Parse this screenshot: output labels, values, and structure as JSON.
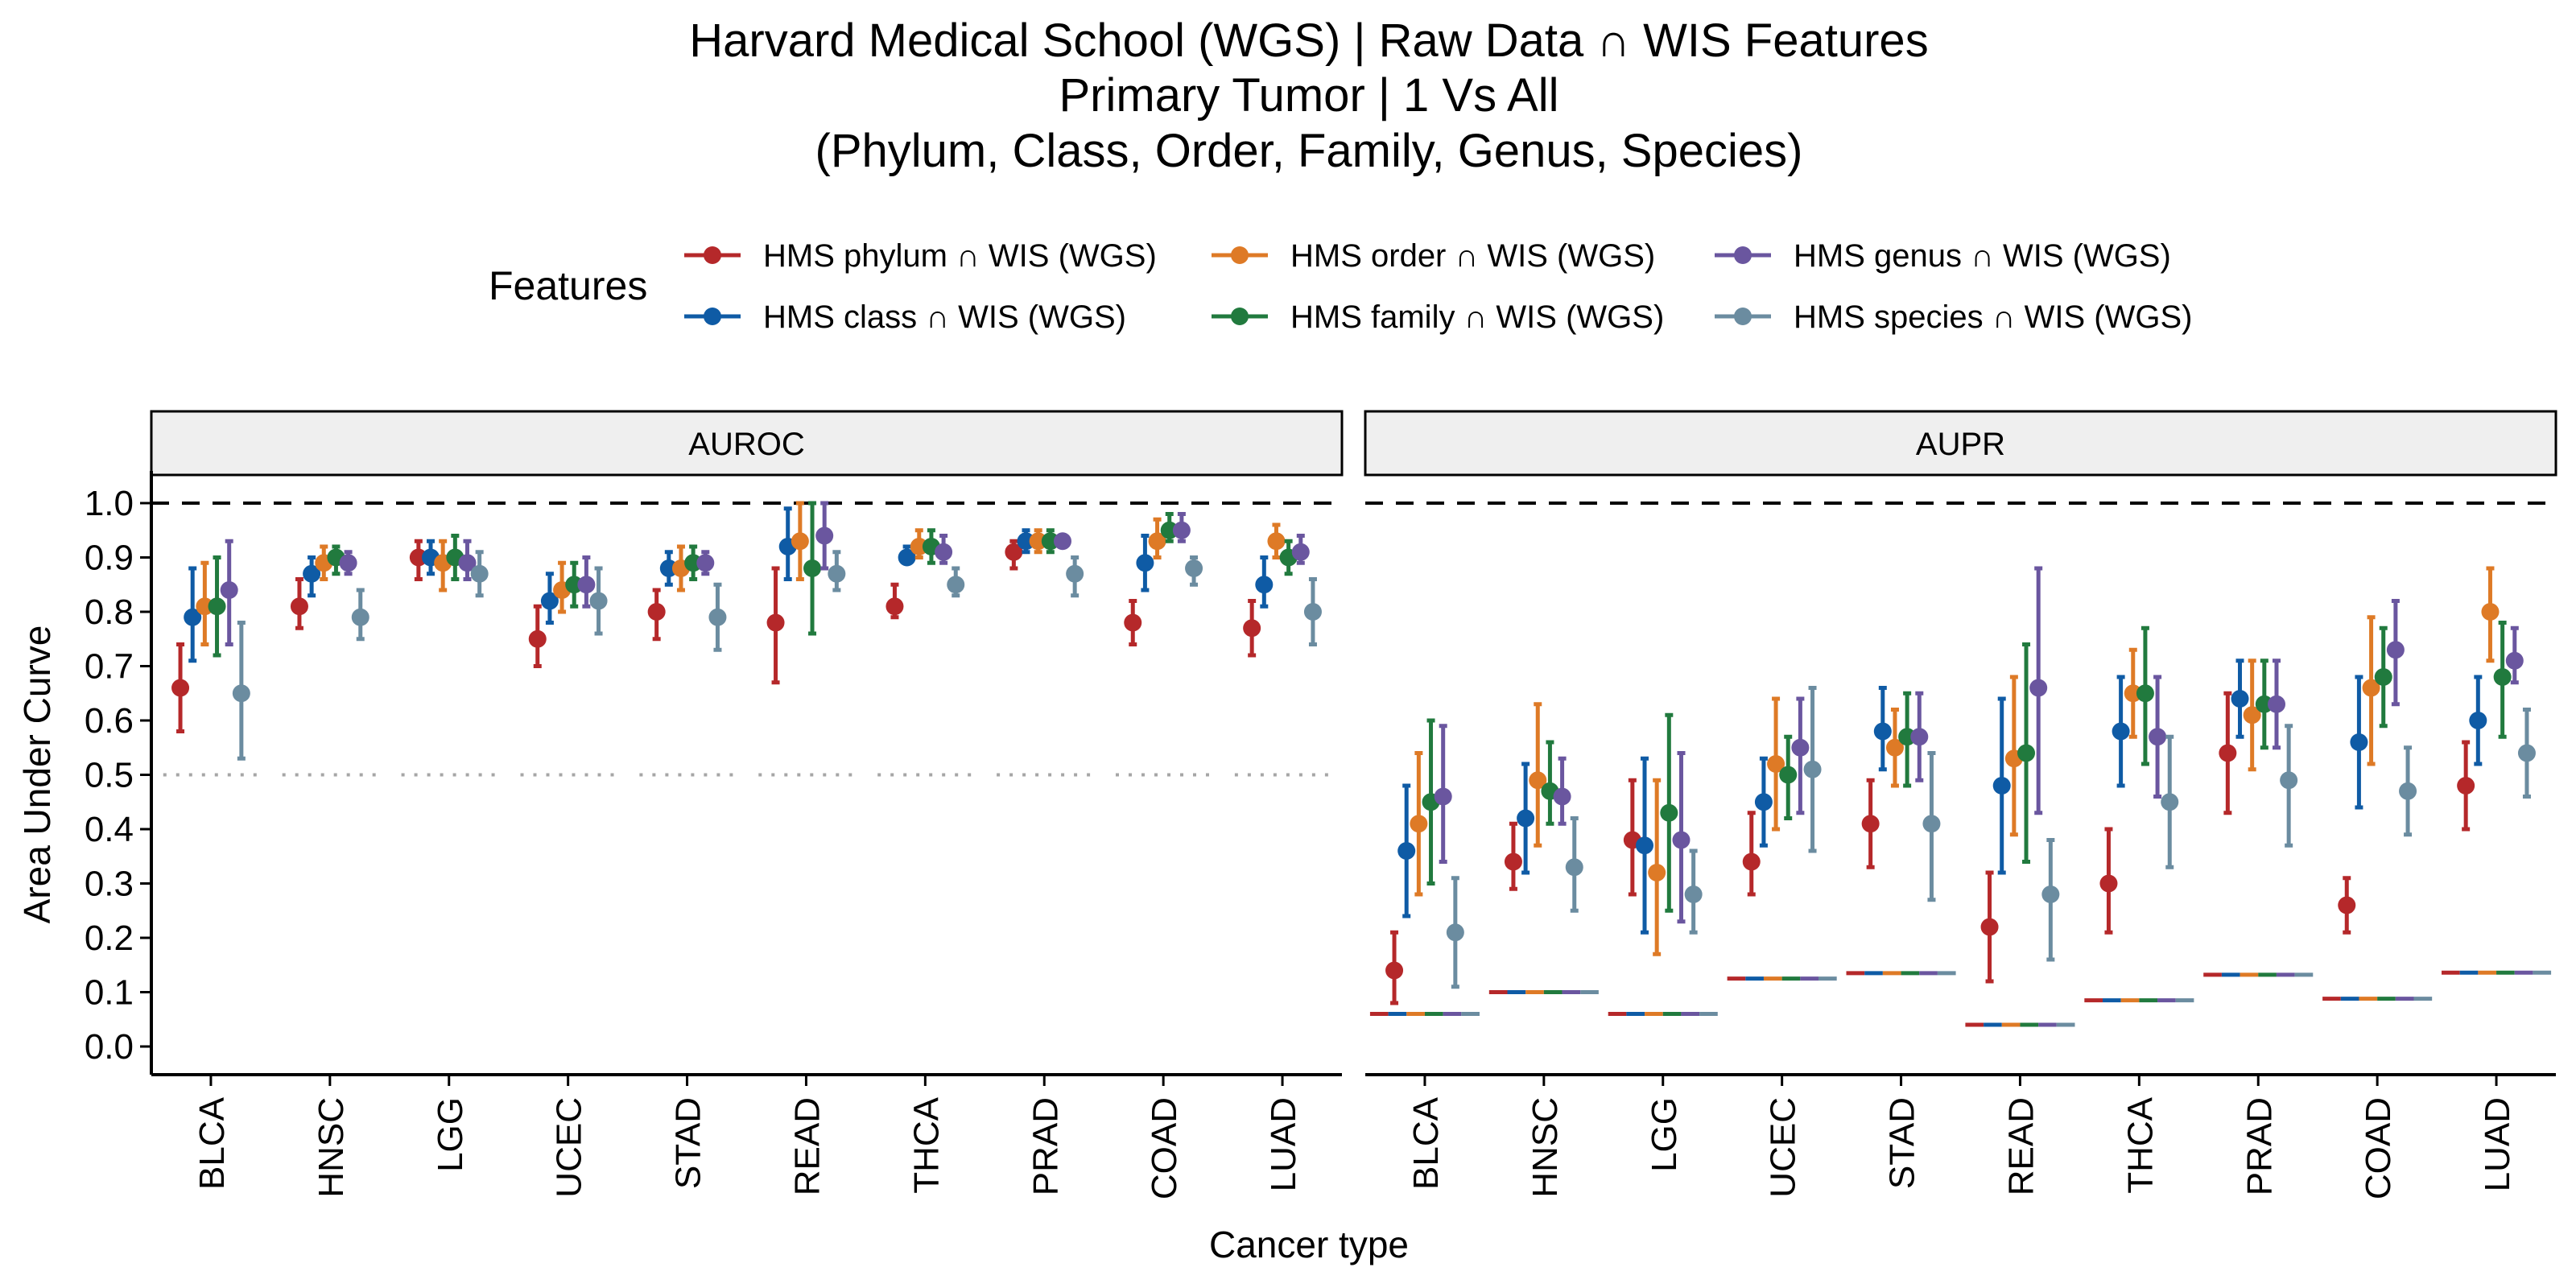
{
  "chart_data": {
    "type": "scatter",
    "title": [
      "Harvard Medical School (WGS) | Raw Data ∩ WIS Features",
      "Primary Tumor | 1 Vs All",
      "(Phylum, Class, Order, Family, Genus, Species)"
    ],
    "xlabel": "Cancer type",
    "ylabel": "Area Under Curve",
    "ylim": [
      0,
      1
    ],
    "yticks": [
      "0.0",
      "0.1",
      "0.2",
      "0.3",
      "0.4",
      "0.5",
      "0.6",
      "0.7",
      "0.8",
      "0.9",
      "1.0"
    ],
    "categories": [
      "BLCA",
      "HNSC",
      "LGG",
      "UCEC",
      "STAD",
      "READ",
      "THCA",
      "PRAD",
      "COAD",
      "LUAD"
    ],
    "legend_title": "Features",
    "legend_position": "top",
    "series": [
      {
        "name": "HMS phylum ∩ WIS (WGS)",
        "color": "#B5282A"
      },
      {
        "name": "HMS class ∩ WIS (WGS)",
        "color": "#0F5BA5"
      },
      {
        "name": "HMS order ∩ WIS (WGS)",
        "color": "#DE7A26"
      },
      {
        "name": "HMS family ∩ WIS (WGS)",
        "color": "#217A3E"
      },
      {
        "name": "HMS genus ∩ WIS (WGS)",
        "color": "#6A569F"
      },
      {
        "name": "HMS species ∩ WIS (WGS)",
        "color": "#6B8CA0"
      }
    ],
    "panels": [
      {
        "label": "AUROC",
        "reference_lines": [
          {
            "y": 1.0,
            "style": "dashed"
          },
          {
            "y": 0.5,
            "style": "dotted"
          }
        ],
        "values": [
          [
            [
              0.66,
              0.58,
              0.74
            ],
            [
              0.79,
              0.71,
              0.88
            ],
            [
              0.81,
              0.74,
              0.89
            ],
            [
              0.81,
              0.72,
              0.9
            ],
            [
              0.84,
              0.74,
              0.93
            ],
            [
              0.65,
              0.53,
              0.78
            ]
          ],
          [
            [
              0.81,
              0.77,
              0.86
            ],
            [
              0.87,
              0.83,
              0.9
            ],
            [
              0.89,
              0.86,
              0.92
            ],
            [
              0.9,
              0.87,
              0.92
            ],
            [
              0.89,
              0.87,
              0.91
            ],
            [
              0.79,
              0.75,
              0.84
            ]
          ],
          [
            [
              0.9,
              0.86,
              0.93
            ],
            [
              0.9,
              0.87,
              0.93
            ],
            [
              0.89,
              0.84,
              0.93
            ],
            [
              0.9,
              0.86,
              0.94
            ],
            [
              0.89,
              0.86,
              0.93
            ],
            [
              0.87,
              0.83,
              0.91
            ]
          ],
          [
            [
              0.75,
              0.7,
              0.81
            ],
            [
              0.82,
              0.78,
              0.87
            ],
            [
              0.84,
              0.8,
              0.89
            ],
            [
              0.85,
              0.81,
              0.89
            ],
            [
              0.85,
              0.81,
              0.9
            ],
            [
              0.82,
              0.76,
              0.88
            ]
          ],
          [
            [
              0.8,
              0.75,
              0.84
            ],
            [
              0.88,
              0.85,
              0.91
            ],
            [
              0.88,
              0.84,
              0.92
            ],
            [
              0.89,
              0.86,
              0.92
            ],
            [
              0.89,
              0.87,
              0.91
            ],
            [
              0.79,
              0.73,
              0.85
            ]
          ],
          [
            [
              0.78,
              0.67,
              0.88
            ],
            [
              0.92,
              0.86,
              0.99
            ],
            [
              0.93,
              0.86,
              1.0
            ],
            [
              0.88,
              0.76,
              1.0
            ],
            [
              0.94,
              0.88,
              1.0
            ],
            [
              0.87,
              0.84,
              0.91
            ]
          ],
          [
            [
              0.81,
              0.79,
              0.85
            ],
            [
              0.9,
              0.89,
              0.92
            ],
            [
              0.92,
              0.9,
              0.95
            ],
            [
              0.92,
              0.89,
              0.95
            ],
            [
              0.91,
              0.89,
              0.94
            ],
            [
              0.85,
              0.83,
              0.88
            ]
          ],
          [
            [
              0.91,
              0.88,
              0.93
            ],
            [
              0.93,
              0.91,
              0.95
            ],
            [
              0.93,
              0.91,
              0.95
            ],
            [
              0.93,
              0.91,
              0.95
            ],
            [
              0.93,
              0.92,
              0.94
            ],
            [
              0.87,
              0.83,
              0.9
            ]
          ],
          [
            [
              0.78,
              0.74,
              0.82
            ],
            [
              0.89,
              0.84,
              0.94
            ],
            [
              0.93,
              0.9,
              0.97
            ],
            [
              0.95,
              0.93,
              0.98
            ],
            [
              0.95,
              0.93,
              0.98
            ],
            [
              0.88,
              0.85,
              0.9
            ]
          ],
          [
            [
              0.77,
              0.72,
              0.82
            ],
            [
              0.85,
              0.81,
              0.9
            ],
            [
              0.93,
              0.9,
              0.96
            ],
            [
              0.9,
              0.87,
              0.93
            ],
            [
              0.91,
              0.89,
              0.94
            ],
            [
              0.8,
              0.74,
              0.86
            ]
          ]
        ]
      },
      {
        "label": "AUPR",
        "reference_lines": [
          {
            "y": 1.0,
            "style": "dashed"
          }
        ],
        "baselines": [
          0.06,
          0.1,
          0.06,
          0.125,
          0.135,
          0.04,
          0.085,
          0.132,
          0.088,
          0.136
        ],
        "values": [
          [
            [
              0.14,
              0.08,
              0.21
            ],
            [
              0.36,
              0.24,
              0.48
            ],
            [
              0.41,
              0.28,
              0.54
            ],
            [
              0.45,
              0.3,
              0.6
            ],
            [
              0.46,
              0.34,
              0.59
            ],
            [
              0.21,
              0.11,
              0.31
            ]
          ],
          [
            [
              0.34,
              0.29,
              0.41
            ],
            [
              0.42,
              0.32,
              0.52
            ],
            [
              0.49,
              0.37,
              0.63
            ],
            [
              0.47,
              0.41,
              0.56
            ],
            [
              0.46,
              0.41,
              0.53
            ],
            [
              0.33,
              0.25,
              0.42
            ]
          ],
          [
            [
              0.38,
              0.28,
              0.49
            ],
            [
              0.37,
              0.21,
              0.53
            ],
            [
              0.32,
              0.17,
              0.49
            ],
            [
              0.43,
              0.25,
              0.61
            ],
            [
              0.38,
              0.23,
              0.54
            ],
            [
              0.28,
              0.21,
              0.36
            ]
          ],
          [
            [
              0.34,
              0.28,
              0.43
            ],
            [
              0.45,
              0.37,
              0.53
            ],
            [
              0.52,
              0.4,
              0.64
            ],
            [
              0.5,
              0.42,
              0.57
            ],
            [
              0.55,
              0.43,
              0.64
            ],
            [
              0.51,
              0.36,
              0.66
            ]
          ],
          [
            [
              0.41,
              0.33,
              0.49
            ],
            [
              0.58,
              0.51,
              0.66
            ],
            [
              0.55,
              0.48,
              0.62
            ],
            [
              0.57,
              0.48,
              0.65
            ],
            [
              0.57,
              0.49,
              0.65
            ],
            [
              0.41,
              0.27,
              0.54
            ]
          ],
          [
            [
              0.22,
              0.12,
              0.32
            ],
            [
              0.48,
              0.32,
              0.64
            ],
            [
              0.53,
              0.39,
              0.68
            ],
            [
              0.54,
              0.34,
              0.74
            ],
            [
              0.66,
              0.43,
              0.88
            ],
            [
              0.28,
              0.16,
              0.38
            ]
          ],
          [
            [
              0.3,
              0.21,
              0.4
            ],
            [
              0.58,
              0.48,
              0.68
            ],
            [
              0.65,
              0.57,
              0.73
            ],
            [
              0.65,
              0.52,
              0.77
            ],
            [
              0.57,
              0.46,
              0.68
            ],
            [
              0.45,
              0.33,
              0.57
            ]
          ],
          [
            [
              0.54,
              0.43,
              0.65
            ],
            [
              0.64,
              0.57,
              0.71
            ],
            [
              0.61,
              0.51,
              0.71
            ],
            [
              0.63,
              0.55,
              0.71
            ],
            [
              0.63,
              0.55,
              0.71
            ],
            [
              0.49,
              0.37,
              0.59
            ]
          ],
          [
            [
              0.26,
              0.21,
              0.31
            ],
            [
              0.56,
              0.44,
              0.68
            ],
            [
              0.66,
              0.52,
              0.79
            ],
            [
              0.68,
              0.59,
              0.77
            ],
            [
              0.73,
              0.63,
              0.82
            ],
            [
              0.47,
              0.39,
              0.55
            ]
          ],
          [
            [
              0.48,
              0.4,
              0.56
            ],
            [
              0.6,
              0.52,
              0.68
            ],
            [
              0.8,
              0.71,
              0.88
            ],
            [
              0.68,
              0.57,
              0.78
            ],
            [
              0.71,
              0.67,
              0.77
            ],
            [
              0.54,
              0.46,
              0.62
            ]
          ]
        ]
      }
    ]
  }
}
